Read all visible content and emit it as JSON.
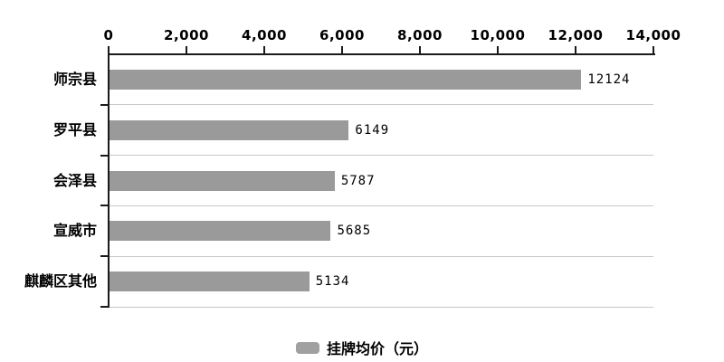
{
  "chart_data": {
    "type": "bar",
    "orientation": "horizontal",
    "title": "",
    "xlabel": "",
    "ylabel": "",
    "categories": [
      "师宗县",
      "罗平县",
      "会泽县",
      "宣威市",
      "麒麟区其他"
    ],
    "series": [
      {
        "name": "挂牌均价（元）",
        "values": [
          12124,
          6149,
          5787,
          5685,
          5134
        ],
        "value_labels": [
          "12124",
          "6149",
          "5787",
          "5685",
          "5134"
        ]
      }
    ],
    "xlim": [
      0,
      14000
    ],
    "x_tick_values": [
      0,
      2000,
      4000,
      6000,
      8000,
      10000,
      12000,
      14000
    ],
    "x_tick_labels": [
      "0",
      "2,000",
      "4,000",
      "6,000",
      "8,000",
      "10,000",
      "12,000",
      "14,000"
    ],
    "x_axis_position": "top",
    "grid": "row-separators",
    "legend_position": "bottom"
  },
  "legend": {
    "label": "挂牌均价（元）"
  },
  "colors": {
    "bar": "#9a9a9a",
    "legend_swatch": "#a0a0a0",
    "axis": "#1a1a1a",
    "gridline": "#c8c8c8",
    "background": "#ffffff",
    "text": "#000000"
  }
}
